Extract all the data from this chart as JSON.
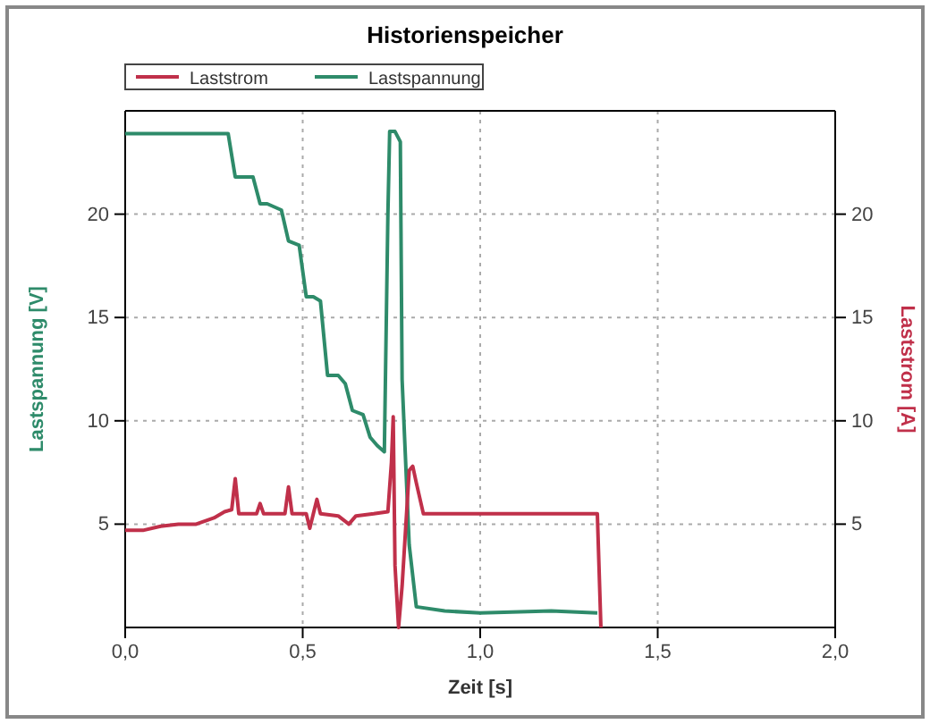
{
  "chart_data": {
    "type": "line",
    "title": "Historienspeicher",
    "xlabel": "Zeit [s]",
    "ylabel": "Lastspannung [V]",
    "y2label": "Laststrom [A]",
    "xlim": [
      0,
      2
    ],
    "xticks": [
      {
        "value": 0,
        "label": "0,0"
      },
      {
        "value": 0.5,
        "label": "0,5"
      },
      {
        "value": 1,
        "label": "1,0"
      },
      {
        "value": 1.5,
        "label": "1,5"
      },
      {
        "value": 2,
        "label": "2,0"
      }
    ],
    "ylim": [
      0,
      25
    ],
    "yticks": [
      5,
      10,
      15,
      20
    ],
    "y2lim": [
      0,
      25
    ],
    "y2ticks": [
      5,
      10,
      15,
      20
    ],
    "grid": true,
    "legend": "top left",
    "line_style": "solid",
    "marker": "none",
    "series": [
      {
        "name": "Laststrom",
        "color": "#c0304a",
        "axis": "y2",
        "x": [
          0,
          0.05,
          0.1,
          0.15,
          0.2,
          0.25,
          0.28,
          0.3,
          0.31,
          0.32,
          0.37,
          0.38,
          0.39,
          0.45,
          0.46,
          0.47,
          0.51,
          0.52,
          0.53,
          0.54,
          0.55,
          0.6,
          0.63,
          0.65,
          0.7,
          0.74,
          0.75,
          0.755,
          0.76,
          0.77,
          0.78,
          0.8,
          0.81,
          0.82,
          0.84,
          1.0,
          1.2,
          1.33,
          1.34
        ],
        "values": [
          4.7,
          4.7,
          4.9,
          5.0,
          5.0,
          5.3,
          5.6,
          5.7,
          7.2,
          5.5,
          5.5,
          6.0,
          5.5,
          5.5,
          6.8,
          5.5,
          5.5,
          4.8,
          5.5,
          6.2,
          5.5,
          5.4,
          5.0,
          5.4,
          5.5,
          5.6,
          8.0,
          10.2,
          3.0,
          0,
          2.0,
          7.6,
          7.8,
          7.0,
          5.5,
          5.5,
          5.5,
          5.5,
          0
        ]
      },
      {
        "name": "Lastspannung",
        "color": "#2e8b6a",
        "x": [
          0,
          0.29,
          0.31,
          0.36,
          0.38,
          0.4,
          0.44,
          0.46,
          0.49,
          0.51,
          0.53,
          0.55,
          0.57,
          0.6,
          0.62,
          0.64,
          0.67,
          0.69,
          0.71,
          0.73,
          0.74,
          0.745,
          0.76,
          0.775,
          0.78,
          0.8,
          0.82,
          0.9,
          1.0,
          1.2,
          1.33
        ],
        "values": [
          23.9,
          23.9,
          21.8,
          21.8,
          20.5,
          20.5,
          20.2,
          18.7,
          18.5,
          16.0,
          16.0,
          15.8,
          12.2,
          12.2,
          11.8,
          10.5,
          10.3,
          9.2,
          8.8,
          8.5,
          20.0,
          24.0,
          24.0,
          23.5,
          12.0,
          4.0,
          1.0,
          0.8,
          0.7,
          0.8,
          0.7
        ]
      }
    ]
  }
}
